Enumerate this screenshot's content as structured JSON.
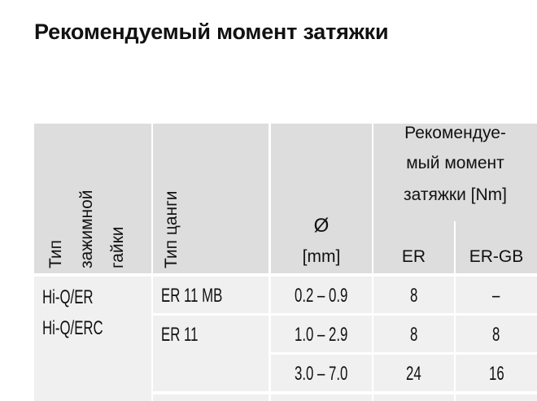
{
  "title": "Рекомендуемый момент затяжки",
  "table": {
    "headers": {
      "nut_type": [
        "Тип",
        "зажимной",
        "гайки"
      ],
      "collet_type": "Тип цанги",
      "diameter_symbol": "Ø",
      "diameter_unit": "[mm]",
      "torque_group": [
        "Рекомендуе-",
        "мый момент",
        "затяжки [Nm]"
      ],
      "er": "ER",
      "er_gb": "ER-GB"
    },
    "nut_types": [
      "Hi-Q/ER",
      "Hi-Q/ERC"
    ],
    "rows": [
      {
        "collet": "ER 11 MB",
        "range": "0.2 – 0.9",
        "er": "8",
        "er_gb": "–"
      },
      {
        "collet": "ER 11",
        "range": "1.0 – 2.9",
        "er": "8",
        "er_gb": "8"
      },
      {
        "collet": "",
        "range": "3.0 – 7.0",
        "er": "24",
        "er_gb": "16"
      }
    ]
  },
  "colors": {
    "header_bg": "#dddddd",
    "body_bg": "#f0f0f0"
  }
}
